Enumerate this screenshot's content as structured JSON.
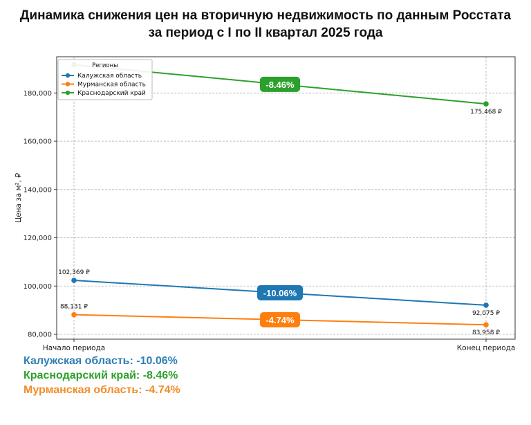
{
  "title_line1": "Динамика снижения цен на вторичную недвижимость по данным Росстата",
  "title_line2": "за период с I по II квартал 2025 года",
  "chart_data": {
    "type": "line",
    "categories": [
      "Начало периода",
      "Конец периода"
    ],
    "ylabel": "Цена за м², ₽",
    "ylim": [
      78000,
      195000
    ],
    "yticks": [
      80000,
      100000,
      120000,
      140000,
      160000,
      180000
    ],
    "ytick_labels": [
      "80,000",
      "100,000",
      "120,000",
      "140,000",
      "160,000",
      "180,000"
    ],
    "grid": true,
    "legend": {
      "title": "Регионы",
      "placement": "top-left"
    },
    "series": [
      {
        "name": "Калужская область",
        "color": "#1f77b4",
        "values": [
          102369,
          92075
        ],
        "point_labels": [
          "102,369 ₽",
          "92,075 ₽"
        ],
        "change_label": "-10.06%"
      },
      {
        "name": "Мурманская область",
        "color": "#ff7f0e",
        "values": [
          88131,
          83958
        ],
        "point_labels": [
          "88,131 ₽",
          "83,958 ₽"
        ],
        "change_label": "-4.74%"
      },
      {
        "name": "Краснодарский край",
        "color": "#2ca02c",
        "values": [
          191680,
          175468
        ],
        "point_labels": [
          "",
          "175,468 ₽"
        ],
        "change_label": "-8.46%"
      }
    ]
  },
  "summary": [
    {
      "text": "Калужская область: -10.06%",
      "color": "#2e7fb5"
    },
    {
      "text": "Краснодарский край: -8.46%",
      "color": "#2ea02c"
    },
    {
      "text": "Мурманская область: -4.74%",
      "color": "#f28c28"
    }
  ]
}
